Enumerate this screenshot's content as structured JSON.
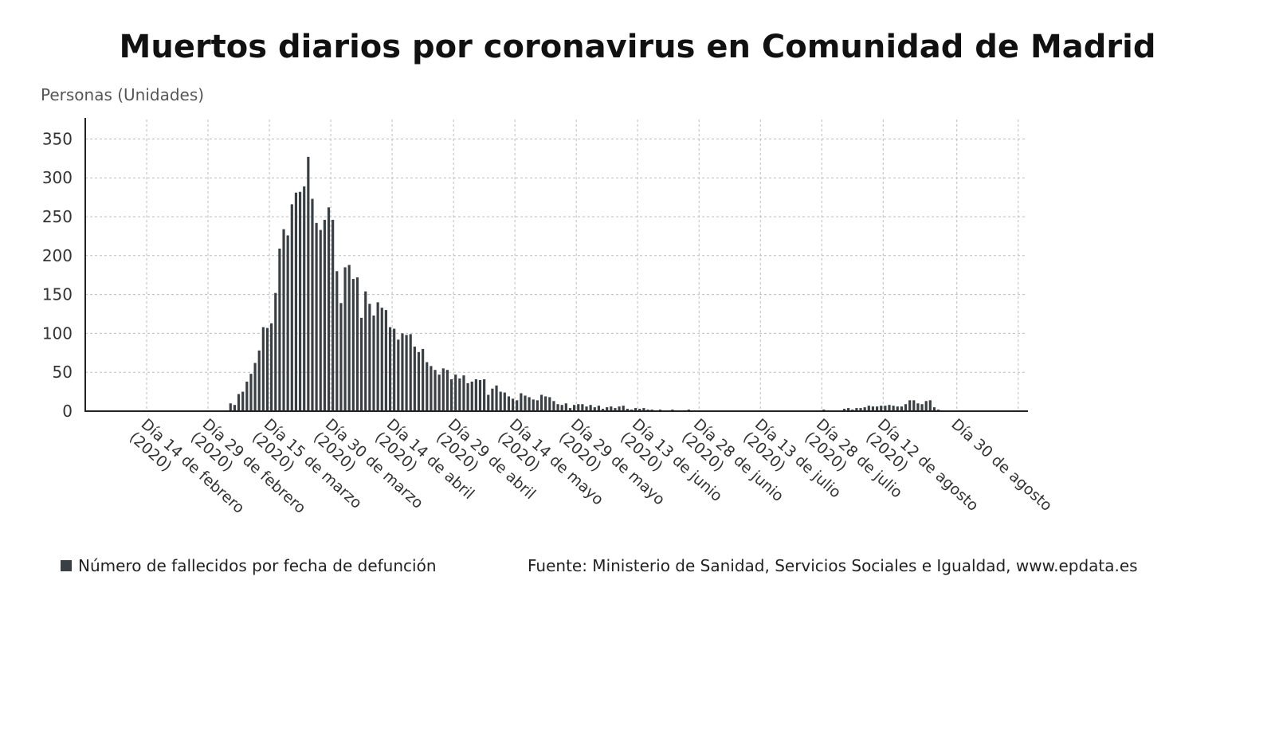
{
  "chart_data": {
    "type": "bar",
    "title": "Muertos diarios por coronavirus en Comunidad de Madrid",
    "ylabel": "Personas (Unidades)",
    "xlabel": "",
    "ylim": [
      0,
      375
    ],
    "yticks": [
      0,
      50,
      100,
      150,
      200,
      250,
      300,
      350
    ],
    "grid": true,
    "legend_position": "bottom-left",
    "series": [
      {
        "name": "Número de fallecidos por fecha de defunción",
        "color": "#3a3f44"
      }
    ],
    "x_start": "2020-01-30",
    "x_end": "2020-09-16",
    "x_ticks": [
      {
        "date": "2020-02-14",
        "label": [
          "Día 14 de febrero",
          "(2020)"
        ]
      },
      {
        "date": "2020-02-29",
        "label": [
          "Día 29 de febrero",
          "(2020)"
        ]
      },
      {
        "date": "2020-03-15",
        "label": [
          "Día 15 de marzo",
          "(2020)"
        ]
      },
      {
        "date": "2020-03-30",
        "label": [
          "Día 30 de marzo",
          "(2020)"
        ]
      },
      {
        "date": "2020-04-14",
        "label": [
          "Día 14 de abril",
          "(2020)"
        ]
      },
      {
        "date": "2020-04-29",
        "label": [
          "Día 29 de abril",
          "(2020)"
        ]
      },
      {
        "date": "2020-05-14",
        "label": [
          "Día 14 de mayo",
          "(2020)"
        ]
      },
      {
        "date": "2020-05-29",
        "label": [
          "Día 29 de mayo",
          "(2020)"
        ]
      },
      {
        "date": "2020-06-13",
        "label": [
          "Día 13 de junio",
          "(2020)"
        ]
      },
      {
        "date": "2020-06-28",
        "label": [
          "Día 28 de junio",
          "(2020)"
        ]
      },
      {
        "date": "2020-07-13",
        "label": [
          "Día 13 de julio",
          "(2020)"
        ]
      },
      {
        "date": "2020-07-28",
        "label": [
          "Día 28 de julio",
          "(2020)"
        ]
      },
      {
        "date": "2020-08-12",
        "label": [
          "Día 12 de agosto",
          "(2020)"
        ]
      },
      {
        "date": "2020-08-30",
        "label": [
          "Día 30 de agosto"
        ]
      }
    ],
    "data": [
      [
        "2020-03-05",
        10
      ],
      [
        "2020-03-06",
        8
      ],
      [
        "2020-03-07",
        22
      ],
      [
        "2020-03-08",
        25
      ],
      [
        "2020-03-09",
        38
      ],
      [
        "2020-03-10",
        48
      ],
      [
        "2020-03-11",
        62
      ],
      [
        "2020-03-12",
        78
      ],
      [
        "2020-03-13",
        108
      ],
      [
        "2020-03-14",
        107
      ],
      [
        "2020-03-15",
        113
      ],
      [
        "2020-03-16",
        152
      ],
      [
        "2020-03-17",
        209
      ],
      [
        "2020-03-18",
        234
      ],
      [
        "2020-03-19",
        226
      ],
      [
        "2020-03-20",
        266
      ],
      [
        "2020-03-21",
        281
      ],
      [
        "2020-03-22",
        282
      ],
      [
        "2020-03-23",
        289
      ],
      [
        "2020-03-24",
        327
      ],
      [
        "2020-03-25",
        273
      ],
      [
        "2020-03-26",
        242
      ],
      [
        "2020-03-27",
        233
      ],
      [
        "2020-03-28",
        246
      ],
      [
        "2020-03-29",
        262
      ],
      [
        "2020-03-30",
        246
      ],
      [
        "2020-03-31",
        180
      ],
      [
        "2020-04-01",
        139
      ],
      [
        "2020-04-02",
        185
      ],
      [
        "2020-04-03",
        188
      ],
      [
        "2020-04-04",
        170
      ],
      [
        "2020-04-05",
        172
      ],
      [
        "2020-04-06",
        120
      ],
      [
        "2020-04-07",
        154
      ],
      [
        "2020-04-08",
        138
      ],
      [
        "2020-04-09",
        123
      ],
      [
        "2020-04-10",
        140
      ],
      [
        "2020-04-11",
        133
      ],
      [
        "2020-04-12",
        130
      ],
      [
        "2020-04-13",
        108
      ],
      [
        "2020-04-14",
        106
      ],
      [
        "2020-04-15",
        92
      ],
      [
        "2020-04-16",
        100
      ],
      [
        "2020-04-17",
        98
      ],
      [
        "2020-04-18",
        99
      ],
      [
        "2020-04-19",
        83
      ],
      [
        "2020-04-20",
        76
      ],
      [
        "2020-04-21",
        80
      ],
      [
        "2020-04-22",
        63
      ],
      [
        "2020-04-23",
        58
      ],
      [
        "2020-04-24",
        53
      ],
      [
        "2020-04-25",
        47
      ],
      [
        "2020-04-26",
        55
      ],
      [
        "2020-04-27",
        53
      ],
      [
        "2020-04-28",
        41
      ],
      [
        "2020-04-29",
        47
      ],
      [
        "2020-04-30",
        42
      ],
      [
        "2020-05-01",
        46
      ],
      [
        "2020-05-02",
        36
      ],
      [
        "2020-05-03",
        38
      ],
      [
        "2020-05-04",
        41
      ],
      [
        "2020-05-05",
        40
      ],
      [
        "2020-05-06",
        41
      ],
      [
        "2020-05-07",
        21
      ],
      [
        "2020-05-08",
        29
      ],
      [
        "2020-05-09",
        33
      ],
      [
        "2020-05-10",
        25
      ],
      [
        "2020-05-11",
        24
      ],
      [
        "2020-05-12",
        19
      ],
      [
        "2020-05-13",
        16
      ],
      [
        "2020-05-14",
        14
      ],
      [
        "2020-05-15",
        23
      ],
      [
        "2020-05-16",
        20
      ],
      [
        "2020-05-17",
        18
      ],
      [
        "2020-05-18",
        15
      ],
      [
        "2020-05-19",
        14
      ],
      [
        "2020-05-20",
        21
      ],
      [
        "2020-05-21",
        19
      ],
      [
        "2020-05-22",
        18
      ],
      [
        "2020-05-23",
        13
      ],
      [
        "2020-05-24",
        9
      ],
      [
        "2020-05-25",
        8
      ],
      [
        "2020-05-26",
        10
      ],
      [
        "2020-05-27",
        4
      ],
      [
        "2020-05-28",
        8
      ],
      [
        "2020-05-29",
        9
      ],
      [
        "2020-05-30",
        9
      ],
      [
        "2020-05-31",
        6
      ],
      [
        "2020-06-01",
        8
      ],
      [
        "2020-06-02",
        5
      ],
      [
        "2020-06-03",
        7
      ],
      [
        "2020-06-04",
        3
      ],
      [
        "2020-06-05",
        5
      ],
      [
        "2020-06-06",
        6
      ],
      [
        "2020-06-07",
        4
      ],
      [
        "2020-06-08",
        6
      ],
      [
        "2020-06-09",
        7
      ],
      [
        "2020-06-10",
        3
      ],
      [
        "2020-06-11",
        2
      ],
      [
        "2020-06-12",
        4
      ],
      [
        "2020-06-13",
        3
      ],
      [
        "2020-06-14",
        4
      ],
      [
        "2020-06-15",
        2
      ],
      [
        "2020-06-16",
        2
      ],
      [
        "2020-06-17",
        1
      ],
      [
        "2020-06-18",
        2
      ],
      [
        "2020-06-19",
        1
      ],
      [
        "2020-06-20",
        1
      ],
      [
        "2020-06-21",
        2
      ],
      [
        "2020-06-22",
        1
      ],
      [
        "2020-06-23",
        1
      ],
      [
        "2020-06-24",
        1
      ],
      [
        "2020-06-25",
        2
      ],
      [
        "2020-06-26",
        1
      ],
      [
        "2020-06-27",
        1
      ],
      [
        "2020-06-28",
        1
      ],
      [
        "2020-06-29",
        1
      ],
      [
        "2020-06-30",
        1
      ],
      [
        "2020-07-01",
        1
      ],
      [
        "2020-07-02",
        1
      ],
      [
        "2020-07-03",
        1
      ],
      [
        "2020-07-04",
        1
      ],
      [
        "2020-07-05",
        1
      ],
      [
        "2020-07-06",
        1
      ],
      [
        "2020-07-07",
        1
      ],
      [
        "2020-07-08",
        1
      ],
      [
        "2020-07-09",
        1
      ],
      [
        "2020-07-10",
        1
      ],
      [
        "2020-07-11",
        1
      ],
      [
        "2020-07-12",
        1
      ],
      [
        "2020-07-13",
        1
      ],
      [
        "2020-07-14",
        1
      ],
      [
        "2020-07-15",
        1
      ],
      [
        "2020-07-16",
        1
      ],
      [
        "2020-07-17",
        1
      ],
      [
        "2020-07-18",
        1
      ],
      [
        "2020-07-19",
        1
      ],
      [
        "2020-07-20",
        1
      ],
      [
        "2020-07-21",
        1
      ],
      [
        "2020-07-22",
        1
      ],
      [
        "2020-07-23",
        1
      ],
      [
        "2020-07-24",
        1
      ],
      [
        "2020-07-25",
        1
      ],
      [
        "2020-07-26",
        1
      ],
      [
        "2020-07-27",
        1
      ],
      [
        "2020-07-28",
        2
      ],
      [
        "2020-07-29",
        1
      ],
      [
        "2020-07-30",
        1
      ],
      [
        "2020-07-31",
        1
      ],
      [
        "2020-08-01",
        1
      ],
      [
        "2020-08-02",
        3
      ],
      [
        "2020-08-03",
        4
      ],
      [
        "2020-08-04",
        2
      ],
      [
        "2020-08-05",
        4
      ],
      [
        "2020-08-06",
        4
      ],
      [
        "2020-08-07",
        5
      ],
      [
        "2020-08-08",
        7
      ],
      [
        "2020-08-09",
        6
      ],
      [
        "2020-08-10",
        6
      ],
      [
        "2020-08-11",
        7
      ],
      [
        "2020-08-12",
        7
      ],
      [
        "2020-08-13",
        8
      ],
      [
        "2020-08-14",
        7
      ],
      [
        "2020-08-15",
        6
      ],
      [
        "2020-08-16",
        6
      ],
      [
        "2020-08-17",
        9
      ],
      [
        "2020-08-18",
        14
      ],
      [
        "2020-08-19",
        14
      ],
      [
        "2020-08-20",
        10
      ],
      [
        "2020-08-21",
        9
      ],
      [
        "2020-08-22",
        13
      ],
      [
        "2020-08-23",
        14
      ],
      [
        "2020-08-24",
        5
      ],
      [
        "2020-08-25",
        2
      ],
      [
        "2020-08-26",
        1
      ]
    ]
  },
  "source_text": "Fuente: Ministerio de Sanidad, Servicios Sociales e Igualdad, www.epdata.es"
}
